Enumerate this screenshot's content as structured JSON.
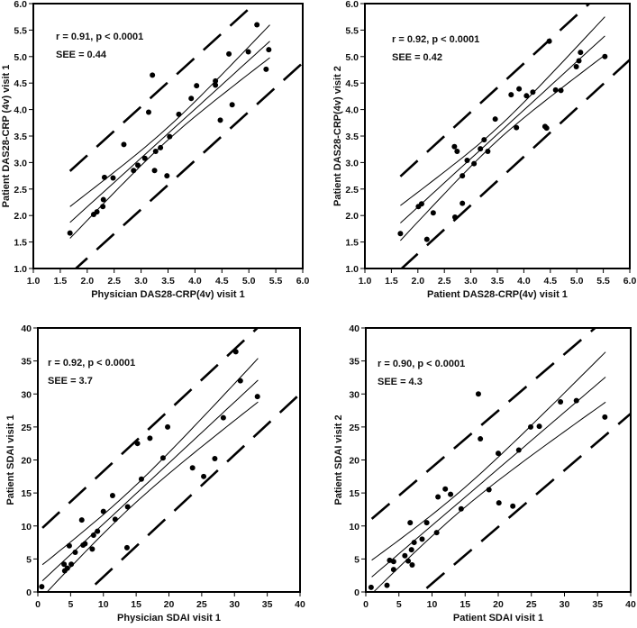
{
  "colors": {
    "ink": "#000000",
    "background": "#ffffff"
  },
  "chart_data": [
    {
      "type": "scatter",
      "xlabel": "Physician DAS28-CRP(4v) visit 1",
      "ylabel": "Patient DAS28-CRP (4v) visit 1",
      "xlim": [
        1.0,
        6.0
      ],
      "ylim": [
        1.0,
        6.0
      ],
      "xticks": [
        "1.0",
        "1.5",
        "2.0",
        "2.5",
        "3.0",
        "3.5",
        "4.0",
        "4.5",
        "5.0",
        "5.5",
        "6.0"
      ],
      "yticks": [
        "1.0",
        "1.5",
        "2.0",
        "2.5",
        "3.0",
        "3.5",
        "4.0",
        "4.5",
        "5.0",
        "5.5",
        "6.0"
      ],
      "annotation": [
        "r = 0.91, p < 0.0001",
        "SEE = 0.44"
      ],
      "fit": {
        "slope": 0.922,
        "intercept": 0.32,
        "range": [
          1.68,
          5.39
        ]
      },
      "ci": {
        "x_mean": 3.5,
        "halfwidth_at_mean": 0.12,
        "halfwidth_at_edge": 0.3,
        "edge_x": 1.68
      },
      "prediction_halfwidth": 0.97,
      "points": [
        [
          1.68,
          1.67
        ],
        [
          2.12,
          2.02
        ],
        [
          2.18,
          2.07
        ],
        [
          2.29,
          2.17
        ],
        [
          2.3,
          2.3
        ],
        [
          2.32,
          2.72
        ],
        [
          2.48,
          2.71
        ],
        [
          2.68,
          3.34
        ],
        [
          2.86,
          2.85
        ],
        [
          2.94,
          2.95
        ],
        [
          3.07,
          3.08
        ],
        [
          3.14,
          3.95
        ],
        [
          3.21,
          4.65
        ],
        [
          3.25,
          2.85
        ],
        [
          3.27,
          3.21
        ],
        [
          3.36,
          3.28
        ],
        [
          3.48,
          2.75
        ],
        [
          3.53,
          3.49
        ],
        [
          3.7,
          3.91
        ],
        [
          3.93,
          4.21
        ],
        [
          4.03,
          4.45
        ],
        [
          4.38,
          4.54
        ],
        [
          4.38,
          4.46
        ],
        [
          4.47,
          3.8
        ],
        [
          4.63,
          5.05
        ],
        [
          4.69,
          4.09
        ],
        [
          4.99,
          5.09
        ],
        [
          5.15,
          5.6
        ],
        [
          5.32,
          4.76
        ],
        [
          5.37,
          5.13
        ]
      ]
    },
    {
      "type": "scatter",
      "xlabel": "Patient DAS28-CRP(4v) visit 1",
      "ylabel": "Patient DAS28-CRP(4v) visit 2",
      "xlim": [
        1.0,
        6.0
      ],
      "ylim": [
        1.0,
        6.0
      ],
      "xticks": [
        "1.0",
        "1.5",
        "2.0",
        "2.5",
        "3.0",
        "3.5",
        "4.0",
        "4.5",
        "5.0",
        "5.5",
        "6.0"
      ],
      "yticks": [
        "1.0",
        "1.5",
        "2.0",
        "2.5",
        "3.0",
        "3.5",
        "4.0",
        "4.5",
        "5.0",
        "5.5",
        "6.0"
      ],
      "annotation": [
        "r = 0.92, p < 0.0001",
        "SEE = 0.42"
      ],
      "fit": {
        "slope": 0.915,
        "intercept": 0.33,
        "range": [
          1.67,
          5.53
        ]
      },
      "ci": {
        "x_mean": 3.5,
        "halfwidth_at_mean": 0.12,
        "halfwidth_at_edge": 0.33,
        "edge_x": 1.67
      },
      "prediction_halfwidth": 0.88,
      "points": [
        [
          1.67,
          1.66
        ],
        [
          2.01,
          2.17
        ],
        [
          2.07,
          2.22
        ],
        [
          2.17,
          1.55
        ],
        [
          2.29,
          2.05
        ],
        [
          2.69,
          3.3
        ],
        [
          2.74,
          3.21
        ],
        [
          2.7,
          1.97
        ],
        [
          2.84,
          2.75
        ],
        [
          2.84,
          2.23
        ],
        [
          2.93,
          3.04
        ],
        [
          3.06,
          2.98
        ],
        [
          3.18,
          3.26
        ],
        [
          3.25,
          3.43
        ],
        [
          3.32,
          3.21
        ],
        [
          3.46,
          3.82
        ],
        [
          3.76,
          4.28
        ],
        [
          3.86,
          3.66
        ],
        [
          3.91,
          4.39
        ],
        [
          4.05,
          4.26
        ],
        [
          4.17,
          4.33
        ],
        [
          4.4,
          3.68
        ],
        [
          4.43,
          3.65
        ],
        [
          4.48,
          5.29
        ],
        [
          4.6,
          4.37
        ],
        [
          4.7,
          4.36
        ],
        [
          4.99,
          4.81
        ],
        [
          5.04,
          4.92
        ],
        [
          5.07,
          5.08
        ],
        [
          5.53,
          5.0
        ]
      ]
    },
    {
      "type": "scatter",
      "xlabel": "Physician SDAI visit 1",
      "ylabel": "Patient SDAI visit 1",
      "xlim": [
        0,
        40
      ],
      "ylim": [
        0,
        40
      ],
      "xticks": [
        "0",
        "5",
        "10",
        "15",
        "20",
        "25",
        "30",
        "35",
        "40"
      ],
      "yticks": [
        "0",
        "5",
        "10",
        "15",
        "20",
        "25",
        "30",
        "35",
        "40"
      ],
      "annotation": [
        "r = 0.92, p < 0.0001",
        "SEE = 3.7"
      ],
      "fit": {
        "slope": 0.924,
        "intercept": 1.05,
        "range": [
          0.7,
          33.6
        ]
      },
      "ci": {
        "x_mean": 14,
        "halfwidth_at_mean": 1.3,
        "halfwidth_at_edge": 3.3,
        "edge_x": 33.6
      },
      "prediction_halfwidth": 8.0,
      "points": [
        [
          0.6,
          0.8
        ],
        [
          4.0,
          4.2
        ],
        [
          4.1,
          3.2
        ],
        [
          4.5,
          3.6
        ],
        [
          5.1,
          4.2
        ],
        [
          4.8,
          7.0
        ],
        [
          5.7,
          6.0
        ],
        [
          6.7,
          10.9
        ],
        [
          6.9,
          7.1
        ],
        [
          7.2,
          7.3
        ],
        [
          8.3,
          6.5
        ],
        [
          8.5,
          8.6
        ],
        [
          9.1,
          9.2
        ],
        [
          10.0,
          12.2
        ],
        [
          11.4,
          14.6
        ],
        [
          11.8,
          11.0
        ],
        [
          13.7,
          12.9
        ],
        [
          13.6,
          6.7
        ],
        [
          15.2,
          22.5
        ],
        [
          15.8,
          17.1
        ],
        [
          17.1,
          23.3
        ],
        [
          19.1,
          20.3
        ],
        [
          19.8,
          25.0
        ],
        [
          23.6,
          18.8
        ],
        [
          25.3,
          17.5
        ],
        [
          27.0,
          20.2
        ],
        [
          28.3,
          26.4
        ],
        [
          30.2,
          36.4
        ],
        [
          30.9,
          32.0
        ],
        [
          33.5,
          29.6
        ]
      ]
    },
    {
      "type": "scatter",
      "xlabel": "Patient SDAI visit 1",
      "ylabel": "Patient SDAI visit 2",
      "xlim": [
        0,
        40
      ],
      "ylim": [
        0,
        40
      ],
      "xticks": [
        "0",
        "5",
        "10",
        "15",
        "20",
        "25",
        "30",
        "35",
        "40"
      ],
      "yticks": [
        "0",
        "5",
        "10",
        "15",
        "20",
        "25",
        "30",
        "35",
        "40"
      ],
      "annotation": [
        "r = 0.90, p < 0.0001",
        "SEE = 4.3"
      ],
      "fit": {
        "slope": 0.858,
        "intercept": 1.5,
        "range": [
          0.9,
          36.2
        ]
      },
      "ci": {
        "x_mean": 14,
        "halfwidth_at_mean": 1.5,
        "halfwidth_at_edge": 3.8,
        "edge_x": 36.2
      },
      "prediction_halfwidth": 8.8,
      "points": [
        [
          0.8,
          0.7
        ],
        [
          3.2,
          1.0
        ],
        [
          3.6,
          4.8
        ],
        [
          4.2,
          4.6
        ],
        [
          4.2,
          3.4
        ],
        [
          5.9,
          5.5
        ],
        [
          6.4,
          4.7
        ],
        [
          6.7,
          10.5
        ],
        [
          6.9,
          6.4
        ],
        [
          7.0,
          4.1
        ],
        [
          7.3,
          7.5
        ],
        [
          8.5,
          8.0
        ],
        [
          9.2,
          10.5
        ],
        [
          10.7,
          9.0
        ],
        [
          10.9,
          14.4
        ],
        [
          12.0,
          15.6
        ],
        [
          12.8,
          14.8
        ],
        [
          14.4,
          12.6
        ],
        [
          17.0,
          30.0
        ],
        [
          17.3,
          23.2
        ],
        [
          18.6,
          15.5
        ],
        [
          20.0,
          21.0
        ],
        [
          20.1,
          13.5
        ],
        [
          22.2,
          13.0
        ],
        [
          23.1,
          21.5
        ],
        [
          24.9,
          25.0
        ],
        [
          26.2,
          25.1
        ],
        [
          29.4,
          28.8
        ],
        [
          31.8,
          29.0
        ],
        [
          36.1,
          26.5
        ]
      ]
    }
  ]
}
